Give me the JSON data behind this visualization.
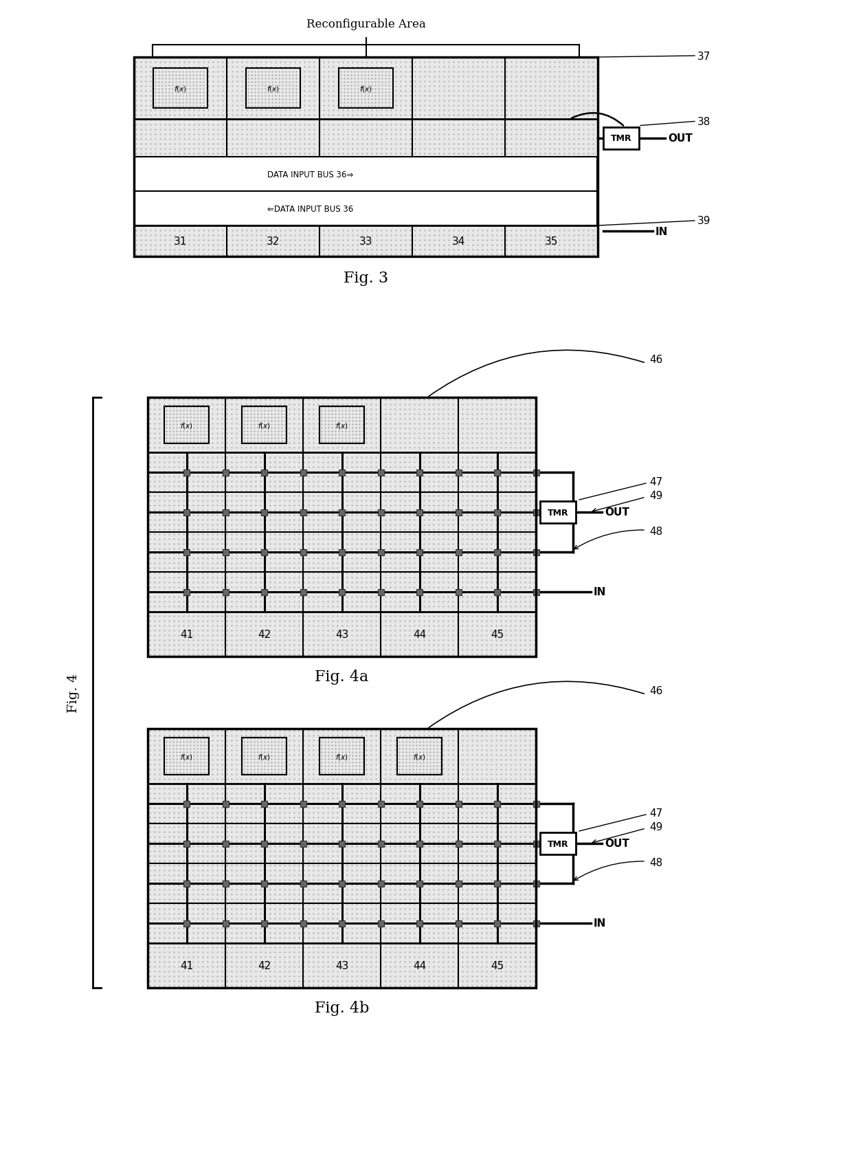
{
  "fig3": {
    "title": "Fig. 3",
    "reconfigurable_label": "Reconfigurable Area",
    "col_labels": [
      "31",
      "32",
      "33",
      "34",
      "35"
    ],
    "bus_label1": "DATA INPUT BUS 36⇒",
    "bus_label2": "⇐DATA INPUT BUS 36"
  },
  "fig4a": {
    "title": "Fig. 4a",
    "col_labels": [
      "41",
      "42",
      "43",
      "44",
      "45"
    ],
    "n_fx": 3
  },
  "fig4b": {
    "title": "Fig. 4b",
    "col_labels": [
      "41",
      "42",
      "43",
      "44",
      "45"
    ],
    "n_fx": 4
  },
  "fig4_label": "Fig. 4",
  "bg_color": "#ffffff"
}
